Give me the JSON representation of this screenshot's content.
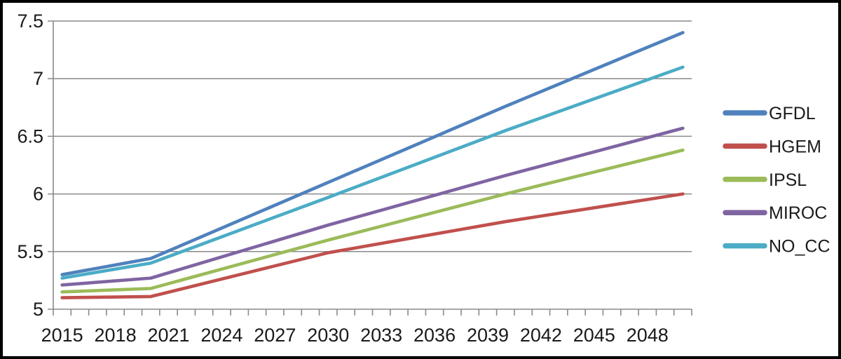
{
  "chart_data": {
    "type": "line",
    "title": "",
    "xlabel": "",
    "ylabel": "",
    "x": [
      2015,
      2020,
      2030,
      2040,
      2050
    ],
    "series": [
      {
        "name": "GFDL",
        "color": "#4F81BD",
        "values": [
          5.3,
          5.44,
          6.1,
          6.76,
          7.4
        ]
      },
      {
        "name": "HGEM",
        "color": "#C0504D",
        "values": [
          5.1,
          5.11,
          5.49,
          5.76,
          6.0
        ]
      },
      {
        "name": "IPSL",
        "color": "#9BBB59",
        "values": [
          5.15,
          5.18,
          5.6,
          6.0,
          6.38
        ]
      },
      {
        "name": "MIROC",
        "color": "#8064A2",
        "values": [
          5.21,
          5.27,
          5.73,
          6.16,
          6.57
        ]
      },
      {
        "name": "NO_CC",
        "color": "#4BACC6",
        "values": [
          5.27,
          5.4,
          5.97,
          6.55,
          7.1
        ]
      }
    ],
    "x_axis": {
      "range_years": [
        2015,
        2050
      ],
      "minor_tick_step_years": 1,
      "labeled_years": [
        2015,
        2018,
        2021,
        2024,
        2027,
        2030,
        2033,
        2036,
        2039,
        2042,
        2045,
        2048
      ],
      "tick_labels": [
        "2015",
        "2018",
        "2021",
        "2024",
        "2027",
        "2030",
        "2033",
        "2036",
        "2039",
        "2042",
        "2045",
        "2048"
      ]
    },
    "y_axis": {
      "range": [
        5,
        7.5
      ],
      "tick_values": [
        5,
        5.5,
        6,
        6.5,
        7,
        7.5
      ],
      "tick_labels": [
        "5",
        "5.5",
        "6",
        "6.5",
        "7",
        "7.5"
      ]
    },
    "legend": {
      "position": "right",
      "entries": [
        "GFDL",
        "HGEM",
        "IPSL",
        "MIROC",
        "NO_CC"
      ]
    },
    "grid": true
  },
  "style": {
    "background": "#ffffff",
    "border_color": "#000000",
    "grid_color": "#8a8a8a",
    "axis_color": "#8a8a8a",
    "text_color": "#1a1a1a"
  }
}
